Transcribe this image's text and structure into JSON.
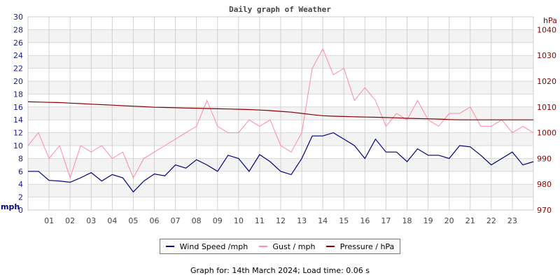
{
  "chart_data": {
    "type": "line",
    "title": "Daily graph of Weather",
    "ylabel_left": "mph",
    "ylabel_right": "hPa",
    "ylim_left": [
      0,
      30
    ],
    "ylim_right": [
      970,
      1045
    ],
    "yticks_left": [
      0,
      2,
      4,
      6,
      8,
      10,
      12,
      14,
      16,
      18,
      20,
      22,
      24,
      26,
      28,
      30
    ],
    "yticks_right": [
      970,
      980,
      990,
      1000,
      1010,
      1020,
      1030,
      1040
    ],
    "xlim": [
      0,
      24
    ],
    "xticks": [
      "01",
      "02",
      "03",
      "04",
      "05",
      "06",
      "07",
      "08",
      "09",
      "10",
      "11",
      "12",
      "13",
      "14",
      "15",
      "16",
      "17",
      "18",
      "19",
      "20",
      "21",
      "22",
      "23"
    ],
    "grid": true,
    "legend_placement": "bottom",
    "x_hours": [
      0,
      0.5,
      1,
      1.5,
      2,
      2.5,
      3,
      3.5,
      4,
      4.5,
      5,
      5.5,
      6,
      6.5,
      7,
      7.5,
      8,
      8.5,
      9,
      9.5,
      10,
      10.5,
      11,
      11.5,
      12,
      12.5,
      13,
      13.5,
      14,
      14.5,
      15,
      15.5,
      16,
      16.5,
      17,
      17.5,
      18,
      18.5,
      19,
      19.5,
      20,
      20.5,
      21,
      21.5,
      22,
      22.5,
      23,
      23.5,
      24
    ],
    "series": [
      {
        "name": "Wind Speed /mph",
        "axis": "left",
        "color": "#000080",
        "values": [
          6,
          6,
          4.6,
          4.5,
          4.3,
          5,
          5.8,
          4.5,
          5.5,
          5,
          2.8,
          4.5,
          5.6,
          5.3,
          7,
          6.5,
          7.8,
          7,
          6,
          8.5,
          8,
          6,
          8.6,
          7.5,
          6,
          5.5,
          8,
          11.5,
          11.5,
          12,
          11,
          10,
          8,
          11,
          9,
          9,
          7.5,
          9.5,
          8.5,
          8.5,
          8,
          10,
          9.8,
          8.5,
          7,
          8,
          9,
          7,
          7.5
        ]
      },
      {
        "name": "Gust / mph",
        "axis": "left",
        "color": "#ff88aa",
        "values": [
          10,
          12,
          8,
          10,
          5,
          10,
          9,
          10,
          8,
          9,
          5,
          8,
          9,
          10,
          11,
          12,
          13,
          17,
          13,
          12,
          12,
          14,
          13,
          14,
          10,
          9,
          12,
          22,
          25,
          21,
          22,
          17,
          19,
          17,
          13,
          15,
          14,
          17,
          14,
          13,
          15,
          15,
          16,
          13,
          13,
          14,
          12,
          13,
          12
        ]
      },
      {
        "name": "Pressure / hPa",
        "axis": "right",
        "color": "#8b0000",
        "values": [
          1012,
          1011.9,
          1011.8,
          1011.7,
          1011.5,
          1011.3,
          1011.1,
          1010.9,
          1010.7,
          1010.5,
          1010.3,
          1010.1,
          1009.9,
          1009.8,
          1009.7,
          1009.6,
          1009.5,
          1009.4,
          1009.3,
          1009.2,
          1009.1,
          1009,
          1008.8,
          1008.6,
          1008.3,
          1008,
          1007.5,
          1007,
          1006.6,
          1006.4,
          1006.3,
          1006.2,
          1006.1,
          1006,
          1005.9,
          1005.8,
          1005.6,
          1005.5,
          1005.4,
          1005.3,
          1005.1,
          1005,
          1005,
          1005,
          1005,
          1005,
          1005,
          1005,
          1005
        ]
      }
    ]
  },
  "footer": "Graph for: 14th March 2024; Load time: 0.06 s"
}
